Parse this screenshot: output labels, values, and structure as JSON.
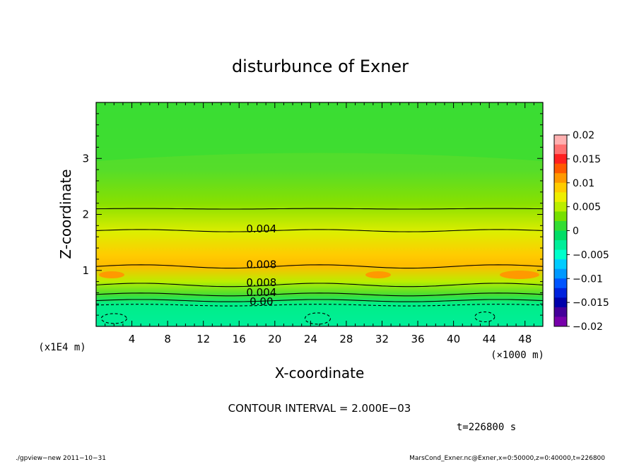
{
  "chart_data": {
    "type": "heatmap",
    "title": "disturbunce of Exner",
    "xlabel": "X-coordinate",
    "ylabel": "Z-coordinate",
    "x_unit": "(×1000 m)",
    "y_unit": "(x1E4 m)",
    "xlim": [
      0,
      50
    ],
    "ylim": [
      0,
      4
    ],
    "x_ticks": [
      "4",
      "8",
      "12",
      "16",
      "20",
      "24",
      "28",
      "32",
      "36",
      "40",
      "44",
      "48"
    ],
    "y_ticks": [
      "1",
      "2",
      "3"
    ],
    "colorbar": {
      "min": -0.02,
      "max": 0.02,
      "labels": [
        "0.02",
        "0.015",
        "0.01",
        "0.005",
        "0",
        "−0.005",
        "−0.01",
        "−0.015",
        "−0.02"
      ],
      "colors": [
        "#ffb0b0",
        "#ff7070",
        "#ff2020",
        "#ff5a00",
        "#ff9900",
        "#ffcc00",
        "#eeee00",
        "#bbee00",
        "#77e000",
        "#33dd33",
        "#00dd66",
        "#00ee99",
        "#00ffcc",
        "#00ccff",
        "#0099ff",
        "#0055ff",
        "#0022dd",
        "#0000aa",
        "#440099",
        "#7700aa"
      ]
    },
    "contour_labels": [
      "0.004",
      "0.008",
      "0.008",
      "0.004",
      "0.00"
    ],
    "contour_interval_text": "CONTOUR INTERVAL = 2.000E−03",
    "time_text": "t=226800 s"
  },
  "footer": {
    "left": "./gpview−new   2011−10−31",
    "right": "MarsCond_Exner.nc@Exner,x=0:50000,z=0:40000,t=226800"
  }
}
